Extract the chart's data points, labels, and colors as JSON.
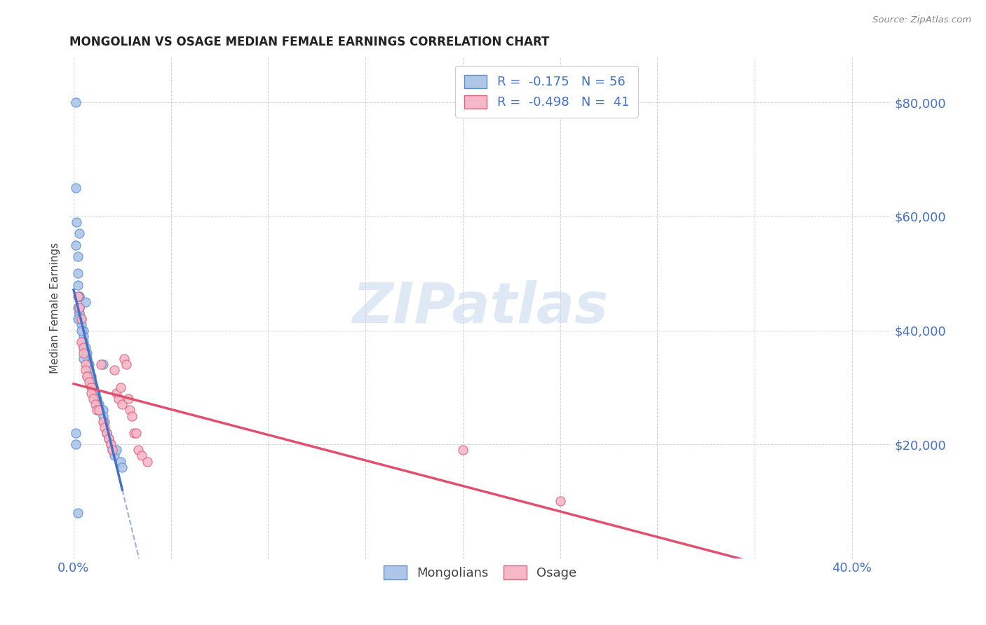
{
  "title": "MONGOLIAN VS OSAGE MEDIAN FEMALE EARNINGS CORRELATION CHART",
  "source": "Source: ZipAtlas.com",
  "ylabel": "Median Female Earnings",
  "watermark": "ZIPatlas",
  "legend_mongolian": {
    "R": "-0.175",
    "N": "56",
    "label": "Mongolians"
  },
  "legend_osage": {
    "R": "-0.498",
    "N": "41",
    "label": "Osage"
  },
  "color_mongolian_fill": "#aec6e8",
  "color_mongolian_edge": "#5b8fd4",
  "color_osage_fill": "#f5b8c8",
  "color_osage_edge": "#e0607a",
  "color_blue_line": "#4472c4",
  "color_pink_line": "#e05070",
  "color_text_blue": "#4472c4",
  "ytick_labels": [
    "$80,000",
    "$60,000",
    "$40,000",
    "$20,000"
  ],
  "ytick_values": [
    80000,
    60000,
    40000,
    20000
  ],
  "xlim": [
    -0.002,
    0.42
  ],
  "ylim": [
    0,
    88000
  ],
  "mongolian_x": [
    0.001,
    0.001,
    0.001,
    0.0015,
    0.002,
    0.002,
    0.002,
    0.0025,
    0.003,
    0.003,
    0.003,
    0.003,
    0.003,
    0.003,
    0.004,
    0.004,
    0.005,
    0.005,
    0.005,
    0.005,
    0.006,
    0.006,
    0.006,
    0.007,
    0.007,
    0.007,
    0.008,
    0.008,
    0.009,
    0.009,
    0.01,
    0.01,
    0.011,
    0.012,
    0.013,
    0.014,
    0.015,
    0.015,
    0.015,
    0.016,
    0.017,
    0.018,
    0.019,
    0.02,
    0.021,
    0.022,
    0.024,
    0.025,
    0.001,
    0.002,
    0.002,
    0.003,
    0.004,
    0.005,
    0.001,
    0.002
  ],
  "mongolian_y": [
    80000,
    65000,
    55000,
    59000,
    53000,
    50000,
    48000,
    46000,
    46000,
    44000,
    43000,
    43000,
    42000,
    57000,
    42000,
    41000,
    40000,
    39000,
    38000,
    37000,
    37000,
    45000,
    36000,
    36000,
    35000,
    34000,
    34000,
    33000,
    32000,
    31000,
    30000,
    30000,
    29000,
    28000,
    27000,
    26000,
    26000,
    25000,
    34000,
    24000,
    22000,
    21000,
    20000,
    19000,
    18000,
    19000,
    17000,
    16000,
    20000,
    42000,
    44000,
    46000,
    40000,
    35000,
    22000,
    8000
  ],
  "osage_x": [
    0.002,
    0.003,
    0.004,
    0.004,
    0.005,
    0.005,
    0.006,
    0.006,
    0.007,
    0.007,
    0.008,
    0.009,
    0.009,
    0.01,
    0.011,
    0.012,
    0.013,
    0.014,
    0.015,
    0.016,
    0.017,
    0.018,
    0.019,
    0.02,
    0.021,
    0.022,
    0.023,
    0.024,
    0.025,
    0.026,
    0.027,
    0.028,
    0.029,
    0.03,
    0.031,
    0.032,
    0.033,
    0.035,
    0.038,
    0.2,
    0.25
  ],
  "osage_y": [
    46000,
    44000,
    42000,
    38000,
    37000,
    36000,
    34000,
    33000,
    32000,
    32000,
    31000,
    30000,
    29000,
    28000,
    27000,
    26000,
    26000,
    34000,
    24000,
    23000,
    22000,
    21000,
    20000,
    19000,
    33000,
    29000,
    28000,
    30000,
    27000,
    35000,
    34000,
    28000,
    26000,
    25000,
    22000,
    22000,
    19000,
    18000,
    17000,
    19000,
    10000
  ]
}
